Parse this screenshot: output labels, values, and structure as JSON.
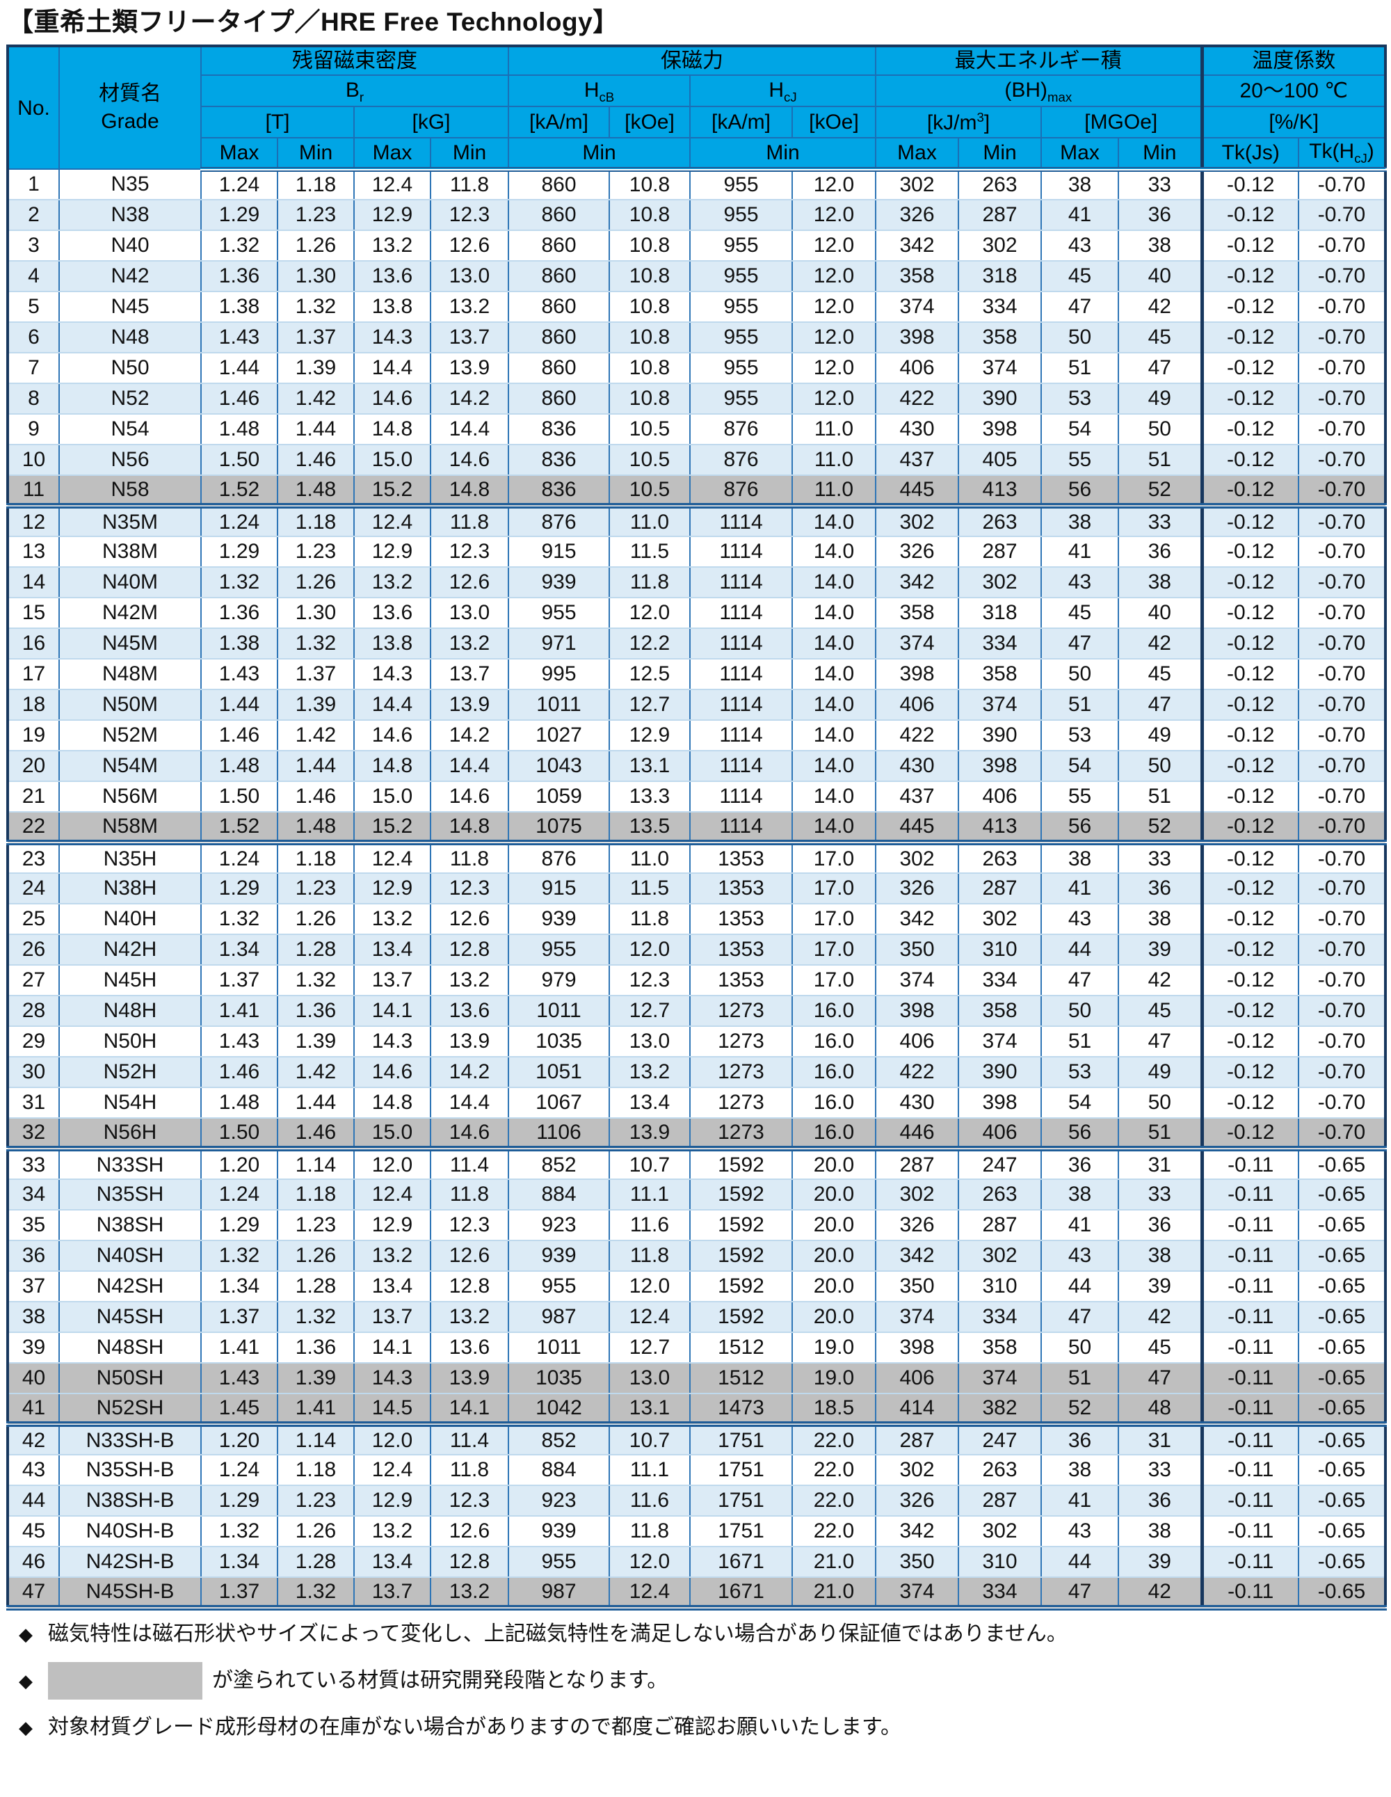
{
  "title": "【重希土類フリータイプ／HRE Free Technology】",
  "colors": {
    "header_bg": "#00a5e5",
    "row_alt_bg": "#dcebf6",
    "shaded_row_bg": "#bfbfbf",
    "grid_blue": "#2e75b6",
    "group_line_navy": "#17375e"
  },
  "header": {
    "no": "No.",
    "grade_jp": "材質名",
    "grade_en": "Grade",
    "groups": {
      "br_jp": "残留磁束密度",
      "br_base": "B",
      "br_sub": "r",
      "hc_jp": "保磁力",
      "hcb_base": "H",
      "hcb_sub": "cB",
      "hcj_base": "H",
      "hcj_sub": "cJ",
      "bh_jp": "最大エネルギー積",
      "bh_base": "(BH)",
      "bh_sub": "max",
      "tk_jp": "温度係数",
      "tk_range": "20～100 ℃",
      "tk_unit": "[%/K]"
    },
    "units": {
      "t": "[T]",
      "kg": "[kG]",
      "hcb_kam": "[kA/m]",
      "hcb_koe": "[kOe]",
      "hcj_kam": "[kA/m]",
      "hcj_koe": "[kOe]",
      "kjm_pre": "[kJ/m",
      "kjm_sup": "3",
      "kjm_post": "]",
      "mgoe": "[MGOe]"
    },
    "max": "Max",
    "min": "Min",
    "tk_js": "Tk(Js)",
    "tk_hcj_pre": "Tk(H",
    "tk_hcj_sub": "cJ",
    "tk_hcj_post": ")"
  },
  "columns": [
    "no",
    "grade",
    "t_max",
    "t_min",
    "kg_max",
    "kg_min",
    "hcb_kam",
    "hcb_koe",
    "hcj_kam",
    "hcj_koe",
    "kj_max",
    "kj_min",
    "mgoe_max",
    "mgoe_min",
    "tk_js",
    "tk_hcj"
  ],
  "rows": [
    [
      "1",
      "N35",
      "1.24",
      "1.18",
      "12.4",
      "11.8",
      "860",
      "10.8",
      "955",
      "12.0",
      "302",
      "263",
      "38",
      "33",
      "-0.12",
      "-0.70"
    ],
    [
      "2",
      "N38",
      "1.29",
      "1.23",
      "12.9",
      "12.3",
      "860",
      "10.8",
      "955",
      "12.0",
      "326",
      "287",
      "41",
      "36",
      "-0.12",
      "-0.70"
    ],
    [
      "3",
      "N40",
      "1.32",
      "1.26",
      "13.2",
      "12.6",
      "860",
      "10.8",
      "955",
      "12.0",
      "342",
      "302",
      "43",
      "38",
      "-0.12",
      "-0.70"
    ],
    [
      "4",
      "N42",
      "1.36",
      "1.30",
      "13.6",
      "13.0",
      "860",
      "10.8",
      "955",
      "12.0",
      "358",
      "318",
      "45",
      "40",
      "-0.12",
      "-0.70"
    ],
    [
      "5",
      "N45",
      "1.38",
      "1.32",
      "13.8",
      "13.2",
      "860",
      "10.8",
      "955",
      "12.0",
      "374",
      "334",
      "47",
      "42",
      "-0.12",
      "-0.70"
    ],
    [
      "6",
      "N48",
      "1.43",
      "1.37",
      "14.3",
      "13.7",
      "860",
      "10.8",
      "955",
      "12.0",
      "398",
      "358",
      "50",
      "45",
      "-0.12",
      "-0.70"
    ],
    [
      "7",
      "N50",
      "1.44",
      "1.39",
      "14.4",
      "13.9",
      "860",
      "10.8",
      "955",
      "12.0",
      "406",
      "374",
      "51",
      "47",
      "-0.12",
      "-0.70"
    ],
    [
      "8",
      "N52",
      "1.46",
      "1.42",
      "14.6",
      "14.2",
      "860",
      "10.8",
      "955",
      "12.0",
      "422",
      "390",
      "53",
      "49",
      "-0.12",
      "-0.70"
    ],
    [
      "9",
      "N54",
      "1.48",
      "1.44",
      "14.8",
      "14.4",
      "836",
      "10.5",
      "876",
      "11.0",
      "430",
      "398",
      "54",
      "50",
      "-0.12",
      "-0.70"
    ],
    [
      "10",
      "N56",
      "1.50",
      "1.46",
      "15.0",
      "14.6",
      "836",
      "10.5",
      "876",
      "11.0",
      "437",
      "405",
      "55",
      "51",
      "-0.12",
      "-0.70"
    ],
    [
      "11",
      "N58",
      "1.52",
      "1.48",
      "15.2",
      "14.8",
      "836",
      "10.5",
      "876",
      "11.0",
      "445",
      "413",
      "56",
      "52",
      "-0.12",
      "-0.70"
    ],
    [
      "12",
      "N35M",
      "1.24",
      "1.18",
      "12.4",
      "11.8",
      "876",
      "11.0",
      "1114",
      "14.0",
      "302",
      "263",
      "38",
      "33",
      "-0.12",
      "-0.70"
    ],
    [
      "13",
      "N38M",
      "1.29",
      "1.23",
      "12.9",
      "12.3",
      "915",
      "11.5",
      "1114",
      "14.0",
      "326",
      "287",
      "41",
      "36",
      "-0.12",
      "-0.70"
    ],
    [
      "14",
      "N40M",
      "1.32",
      "1.26",
      "13.2",
      "12.6",
      "939",
      "11.8",
      "1114",
      "14.0",
      "342",
      "302",
      "43",
      "38",
      "-0.12",
      "-0.70"
    ],
    [
      "15",
      "N42M",
      "1.36",
      "1.30",
      "13.6",
      "13.0",
      "955",
      "12.0",
      "1114",
      "14.0",
      "358",
      "318",
      "45",
      "40",
      "-0.12",
      "-0.70"
    ],
    [
      "16",
      "N45M",
      "1.38",
      "1.32",
      "13.8",
      "13.2",
      "971",
      "12.2",
      "1114",
      "14.0",
      "374",
      "334",
      "47",
      "42",
      "-0.12",
      "-0.70"
    ],
    [
      "17",
      "N48M",
      "1.43",
      "1.37",
      "14.3",
      "13.7",
      "995",
      "12.5",
      "1114",
      "14.0",
      "398",
      "358",
      "50",
      "45",
      "-0.12",
      "-0.70"
    ],
    [
      "18",
      "N50M",
      "1.44",
      "1.39",
      "14.4",
      "13.9",
      "1011",
      "12.7",
      "1114",
      "14.0",
      "406",
      "374",
      "51",
      "47",
      "-0.12",
      "-0.70"
    ],
    [
      "19",
      "N52M",
      "1.46",
      "1.42",
      "14.6",
      "14.2",
      "1027",
      "12.9",
      "1114",
      "14.0",
      "422",
      "390",
      "53",
      "49",
      "-0.12",
      "-0.70"
    ],
    [
      "20",
      "N54M",
      "1.48",
      "1.44",
      "14.8",
      "14.4",
      "1043",
      "13.1",
      "1114",
      "14.0",
      "430",
      "398",
      "54",
      "50",
      "-0.12",
      "-0.70"
    ],
    [
      "21",
      "N56M",
      "1.50",
      "1.46",
      "15.0",
      "14.6",
      "1059",
      "13.3",
      "1114",
      "14.0",
      "437",
      "406",
      "55",
      "51",
      "-0.12",
      "-0.70"
    ],
    [
      "22",
      "N58M",
      "1.52",
      "1.48",
      "15.2",
      "14.8",
      "1075",
      "13.5",
      "1114",
      "14.0",
      "445",
      "413",
      "56",
      "52",
      "-0.12",
      "-0.70"
    ],
    [
      "23",
      "N35H",
      "1.24",
      "1.18",
      "12.4",
      "11.8",
      "876",
      "11.0",
      "1353",
      "17.0",
      "302",
      "263",
      "38",
      "33",
      "-0.12",
      "-0.70"
    ],
    [
      "24",
      "N38H",
      "1.29",
      "1.23",
      "12.9",
      "12.3",
      "915",
      "11.5",
      "1353",
      "17.0",
      "326",
      "287",
      "41",
      "36",
      "-0.12",
      "-0.70"
    ],
    [
      "25",
      "N40H",
      "1.32",
      "1.26",
      "13.2",
      "12.6",
      "939",
      "11.8",
      "1353",
      "17.0",
      "342",
      "302",
      "43",
      "38",
      "-0.12",
      "-0.70"
    ],
    [
      "26",
      "N42H",
      "1.34",
      "1.28",
      "13.4",
      "12.8",
      "955",
      "12.0",
      "1353",
      "17.0",
      "350",
      "310",
      "44",
      "39",
      "-0.12",
      "-0.70"
    ],
    [
      "27",
      "N45H",
      "1.37",
      "1.32",
      "13.7",
      "13.2",
      "979",
      "12.3",
      "1353",
      "17.0",
      "374",
      "334",
      "47",
      "42",
      "-0.12",
      "-0.70"
    ],
    [
      "28",
      "N48H",
      "1.41",
      "1.36",
      "14.1",
      "13.6",
      "1011",
      "12.7",
      "1273",
      "16.0",
      "398",
      "358",
      "50",
      "45",
      "-0.12",
      "-0.70"
    ],
    [
      "29",
      "N50H",
      "1.43",
      "1.39",
      "14.3",
      "13.9",
      "1035",
      "13.0",
      "1273",
      "16.0",
      "406",
      "374",
      "51",
      "47",
      "-0.12",
      "-0.70"
    ],
    [
      "30",
      "N52H",
      "1.46",
      "1.42",
      "14.6",
      "14.2",
      "1051",
      "13.2",
      "1273",
      "16.0",
      "422",
      "390",
      "53",
      "49",
      "-0.12",
      "-0.70"
    ],
    [
      "31",
      "N54H",
      "1.48",
      "1.44",
      "14.8",
      "14.4",
      "1067",
      "13.4",
      "1273",
      "16.0",
      "430",
      "398",
      "54",
      "50",
      "-0.12",
      "-0.70"
    ],
    [
      "32",
      "N56H",
      "1.50",
      "1.46",
      "15.0",
      "14.6",
      "1106",
      "13.9",
      "1273",
      "16.0",
      "446",
      "406",
      "56",
      "51",
      "-0.12",
      "-0.70"
    ],
    [
      "33",
      "N33SH",
      "1.20",
      "1.14",
      "12.0",
      "11.4",
      "852",
      "10.7",
      "1592",
      "20.0",
      "287",
      "247",
      "36",
      "31",
      "-0.11",
      "-0.65"
    ],
    [
      "34",
      "N35SH",
      "1.24",
      "1.18",
      "12.4",
      "11.8",
      "884",
      "11.1",
      "1592",
      "20.0",
      "302",
      "263",
      "38",
      "33",
      "-0.11",
      "-0.65"
    ],
    [
      "35",
      "N38SH",
      "1.29",
      "1.23",
      "12.9",
      "12.3",
      "923",
      "11.6",
      "1592",
      "20.0",
      "326",
      "287",
      "41",
      "36",
      "-0.11",
      "-0.65"
    ],
    [
      "36",
      "N40SH",
      "1.32",
      "1.26",
      "13.2",
      "12.6",
      "939",
      "11.8",
      "1592",
      "20.0",
      "342",
      "302",
      "43",
      "38",
      "-0.11",
      "-0.65"
    ],
    [
      "37",
      "N42SH",
      "1.34",
      "1.28",
      "13.4",
      "12.8",
      "955",
      "12.0",
      "1592",
      "20.0",
      "350",
      "310",
      "44",
      "39",
      "-0.11",
      "-0.65"
    ],
    [
      "38",
      "N45SH",
      "1.37",
      "1.32",
      "13.7",
      "13.2",
      "987",
      "12.4",
      "1592",
      "20.0",
      "374",
      "334",
      "47",
      "42",
      "-0.11",
      "-0.65"
    ],
    [
      "39",
      "N48SH",
      "1.41",
      "1.36",
      "14.1",
      "13.6",
      "1011",
      "12.7",
      "1512",
      "19.0",
      "398",
      "358",
      "50",
      "45",
      "-0.11",
      "-0.65"
    ],
    [
      "40",
      "N50SH",
      "1.43",
      "1.39",
      "14.3",
      "13.9",
      "1035",
      "13.0",
      "1512",
      "19.0",
      "406",
      "374",
      "51",
      "47",
      "-0.11",
      "-0.65"
    ],
    [
      "41",
      "N52SH",
      "1.45",
      "1.41",
      "14.5",
      "14.1",
      "1042",
      "13.1",
      "1473",
      "18.5",
      "414",
      "382",
      "52",
      "48",
      "-0.11",
      "-0.65"
    ],
    [
      "42",
      "N33SH-B",
      "1.20",
      "1.14",
      "12.0",
      "11.4",
      "852",
      "10.7",
      "1751",
      "22.0",
      "287",
      "247",
      "36",
      "31",
      "-0.11",
      "-0.65"
    ],
    [
      "43",
      "N35SH-B",
      "1.24",
      "1.18",
      "12.4",
      "11.8",
      "884",
      "11.1",
      "1751",
      "22.0",
      "302",
      "263",
      "38",
      "33",
      "-0.11",
      "-0.65"
    ],
    [
      "44",
      "N38SH-B",
      "1.29",
      "1.23",
      "12.9",
      "12.3",
      "923",
      "11.6",
      "1751",
      "22.0",
      "326",
      "287",
      "41",
      "36",
      "-0.11",
      "-0.65"
    ],
    [
      "45",
      "N40SH-B",
      "1.32",
      "1.26",
      "13.2",
      "12.6",
      "939",
      "11.8",
      "1751",
      "22.0",
      "342",
      "302",
      "43",
      "38",
      "-0.11",
      "-0.65"
    ],
    [
      "46",
      "N42SH-B",
      "1.34",
      "1.28",
      "13.4",
      "12.8",
      "955",
      "12.0",
      "1671",
      "21.0",
      "350",
      "310",
      "44",
      "39",
      "-0.11",
      "-0.65"
    ],
    [
      "47",
      "N45SH-B",
      "1.37",
      "1.32",
      "13.7",
      "13.2",
      "987",
      "12.4",
      "1671",
      "21.0",
      "374",
      "334",
      "47",
      "42",
      "-0.11",
      "-0.65"
    ]
  ],
  "shaded_rows": [
    11,
    22,
    32,
    40,
    41,
    47
  ],
  "group_end_rows": [
    11,
    22,
    32,
    41,
    47
  ],
  "footer": {
    "bullet": "◆",
    "note1": "磁気特性は磁石形状やサイズによって変化し、上記磁気特性を満足しない場合があり保証値ではありません。",
    "note2": "が塗られている材質は研究開発段階となります。",
    "note3": "対象材質グレード成形母材の在庫がない場合がありますので都度ご確認お願いいたします。"
  }
}
